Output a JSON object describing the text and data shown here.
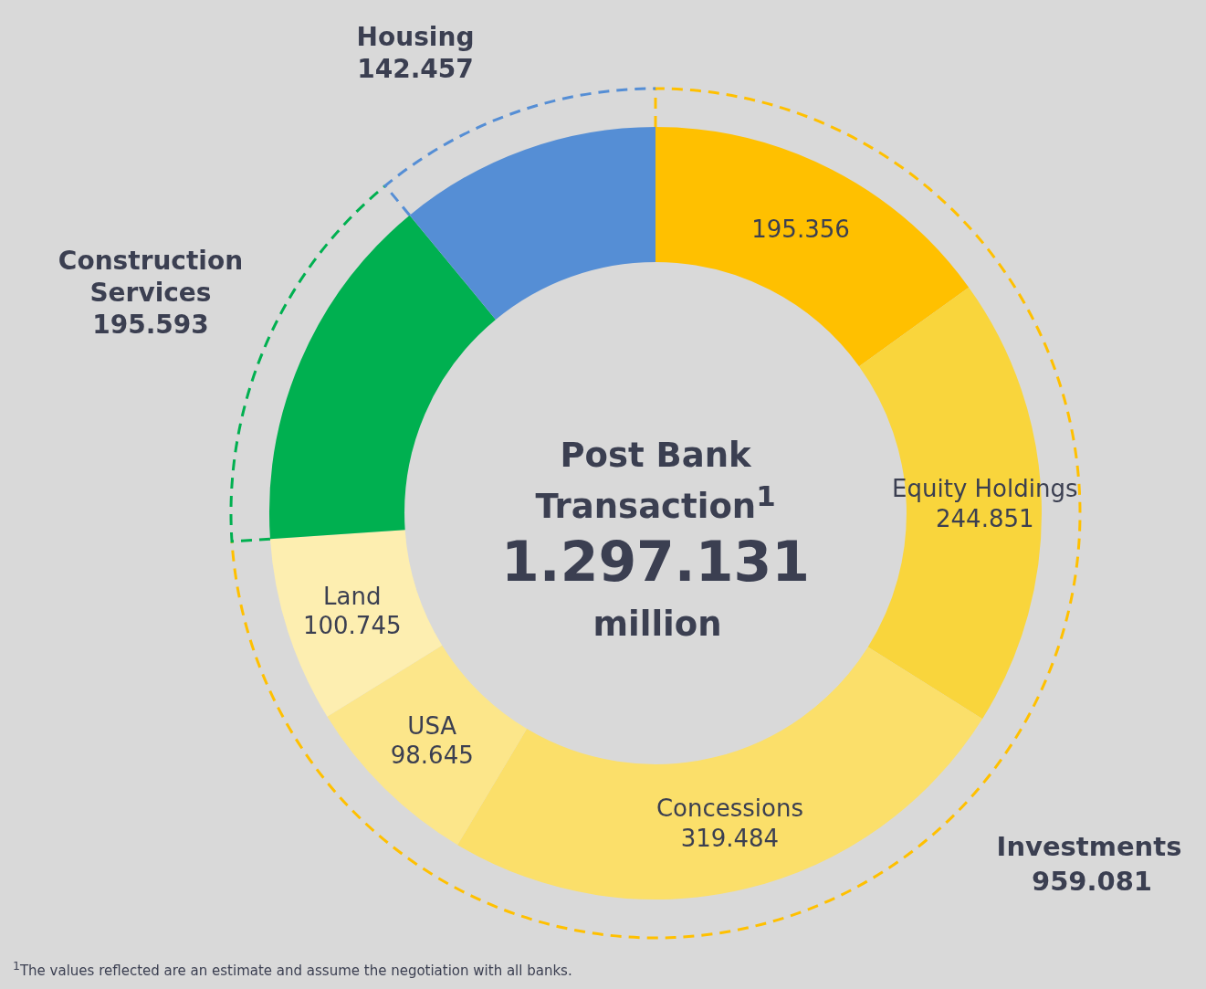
{
  "chart_data": {
    "type": "donut",
    "title": "Post Bank Transaction$^{1}$",
    "categories": [
      null,
      "Equity Holdings",
      "Concessions",
      "USA",
      "Land",
      "Construction Services",
      "Housing"
    ],
    "values": [
      195356,
      244851,
      319484,
      98645,
      100745,
      195593,
      142457
    ],
    "value_labels": [
      "195.356",
      "244.851",
      "319.484",
      "98.645",
      "100.745",
      "195.593",
      "142.457"
    ],
    "colors": [
      "#ffc000",
      "#f9d53c",
      "#fbdf6a",
      "#fce68a",
      "#fdeeb0",
      "#00b050",
      "#558ed5"
    ],
    "annotations": [
      "1.297.131",
      "million",
      "Investments",
      "959.081",
      "$^{1}$The values reflected are an estimate and assume the negotiation with all banks."
    ],
    "legend": false
  }
}
